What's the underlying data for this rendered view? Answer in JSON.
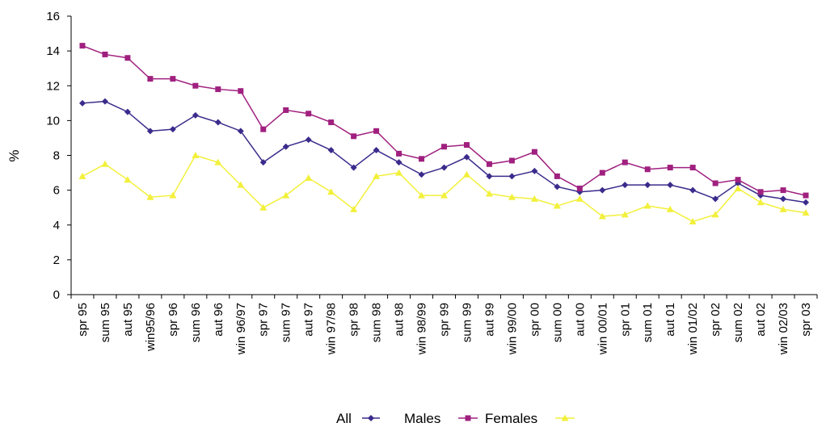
{
  "chart_data": {
    "type": "line",
    "ylabel": "%",
    "ylim": [
      0,
      16
    ],
    "yticks": [
      0,
      2,
      4,
      6,
      8,
      10,
      12,
      14,
      16
    ],
    "grid": false,
    "legend_position": "bottom-center",
    "categories": [
      "spr 95",
      "sum 95",
      "aut 95",
      "win95/96",
      "spr 96",
      "sum 96",
      "aut 96",
      "win 96/97",
      "spr 97",
      "sum 97",
      "aut 97",
      "win 97/98",
      "spr 98",
      "sum 98",
      "aut 98",
      "win 98/99",
      "spr 99",
      "sum 99",
      "aut 99",
      "win 99/00",
      "spr 00",
      "sum 00",
      "aut 00",
      "win 00/01",
      "spr 01",
      "sum 01",
      "aut 01",
      "win 01/02",
      "spr 02",
      "sum 02",
      "aut 02",
      "win 02/03",
      "spr 03"
    ],
    "series": [
      {
        "name": "All",
        "color": "#3b2b8c",
        "marker": "diamond",
        "values": [
          11.0,
          11.1,
          10.5,
          9.4,
          9.5,
          10.3,
          9.9,
          9.4,
          7.6,
          8.5,
          8.9,
          8.3,
          7.3,
          8.3,
          7.6,
          6.9,
          7.3,
          7.9,
          6.8,
          6.8,
          7.1,
          6.2,
          5.9,
          6.0,
          6.3,
          6.3,
          6.3,
          6.0,
          5.5,
          6.4,
          5.7,
          5.5,
          5.3
        ]
      },
      {
        "name": "Males",
        "color": "#a0207f",
        "marker": "square",
        "values": [
          14.3,
          13.8,
          13.6,
          12.4,
          12.4,
          12.0,
          11.8,
          11.7,
          9.5,
          10.6,
          10.4,
          9.9,
          9.1,
          9.4,
          8.1,
          7.8,
          8.5,
          8.6,
          7.5,
          7.7,
          8.2,
          6.8,
          6.1,
          7.0,
          7.6,
          7.2,
          7.3,
          7.3,
          6.4,
          6.6,
          5.9,
          6.0,
          5.7
        ]
      },
      {
        "name": "Females",
        "color": "#f2f03a",
        "marker": "triangle",
        "values": [
          6.8,
          7.5,
          6.6,
          5.6,
          5.7,
          8.0,
          7.6,
          6.3,
          5.0,
          5.7,
          6.7,
          5.9,
          4.9,
          6.8,
          7.0,
          5.7,
          5.7,
          6.9,
          5.8,
          5.6,
          5.5,
          5.1,
          5.5,
          4.5,
          4.6,
          5.1,
          4.9,
          4.2,
          4.6,
          6.1,
          5.3,
          4.9,
          4.7
        ]
      }
    ]
  }
}
